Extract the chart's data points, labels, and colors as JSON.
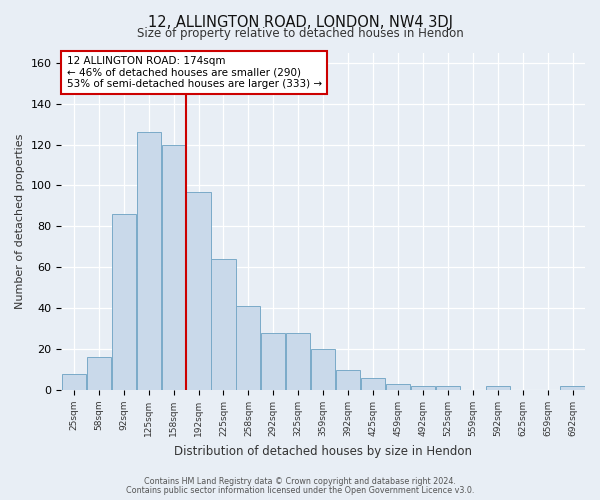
{
  "title": "12, ALLINGTON ROAD, LONDON, NW4 3DJ",
  "subtitle": "Size of property relative to detached houses in Hendon",
  "xlabel": "Distribution of detached houses by size in Hendon",
  "ylabel": "Number of detached properties",
  "bar_labels": [
    "25sqm",
    "58sqm",
    "92sqm",
    "125sqm",
    "158sqm",
    "192sqm",
    "225sqm",
    "258sqm",
    "292sqm",
    "325sqm",
    "359sqm",
    "392sqm",
    "425sqm",
    "459sqm",
    "492sqm",
    "525sqm",
    "559sqm",
    "592sqm",
    "625sqm",
    "659sqm",
    "692sqm"
  ],
  "bar_values": [
    8,
    16,
    86,
    126,
    120,
    97,
    64,
    41,
    28,
    28,
    20,
    10,
    6,
    3,
    2,
    2,
    0,
    2,
    0,
    0,
    2
  ],
  "bar_color": "#c9d9ea",
  "bar_edge_color": "#7aaac8",
  "vline_x": 4.5,
  "vline_color": "#cc0000",
  "annotation_title": "12 ALLINGTON ROAD: 174sqm",
  "annotation_line2": "← 46% of detached houses are smaller (290)",
  "annotation_line3": "53% of semi-detached houses are larger (333) →",
  "annotation_box_color": "#cc0000",
  "ylim": [
    0,
    165
  ],
  "footer1": "Contains HM Land Registry data © Crown copyright and database right 2024.",
  "footer2": "Contains public sector information licensed under the Open Government Licence v3.0.",
  "bg_color": "#e8eef5"
}
